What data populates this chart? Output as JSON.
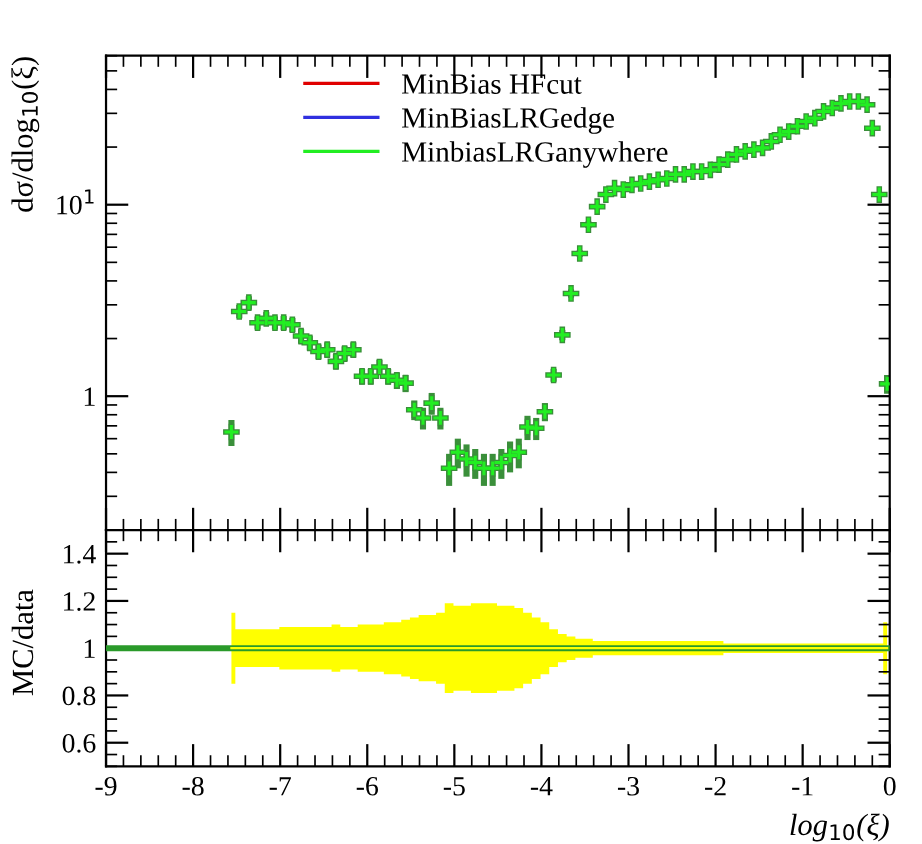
{
  "chart_data": [
    {
      "type": "scatter",
      "ylabel": "dσ/dlog$_{10}$(ξ)",
      "log": "y",
      "xlim": [
        -9,
        0
      ],
      "xticks": [
        -9,
        -8,
        -7,
        -6,
        -5,
        -4,
        -3,
        -2,
        -1,
        0
      ],
      "ylim": [
        0.2,
        60
      ],
      "yticks": [
        {
          "value": 1,
          "label": "1"
        },
        {
          "value": 10,
          "label": "10$^{1}$"
        }
      ],
      "tick_labels": "y",
      "legend": "top right",
      "marker": "cross",
      "grid": false,
      "x": [
        -7.56,
        -7.47,
        -7.36,
        -7.26,
        -7.16,
        -7.06,
        -6.96,
        -6.86,
        -6.76,
        -6.66,
        -6.56,
        -6.46,
        -6.36,
        -6.26,
        -6.16,
        -6.06,
        -5.96,
        -5.86,
        -5.76,
        -5.66,
        -5.56,
        -5.46,
        -5.36,
        -5.26,
        -5.16,
        -5.06,
        -4.96,
        -4.86,
        -4.76,
        -4.66,
        -4.56,
        -4.46,
        -4.36,
        -4.26,
        -4.16,
        -4.06,
        -3.96,
        -3.86,
        -3.76,
        -3.66,
        -3.56,
        -3.46,
        -3.36,
        -3.26,
        -3.16,
        -3.06,
        -2.96,
        -2.86,
        -2.76,
        -2.66,
        -2.56,
        -2.46,
        -2.36,
        -2.26,
        -2.16,
        -2.06,
        -1.96,
        -1.86,
        -1.76,
        -1.66,
        -1.56,
        -1.46,
        -1.36,
        -1.26,
        -1.16,
        -1.06,
        -0.96,
        -0.86,
        -0.76,
        -0.66,
        -0.56,
        -0.46,
        -0.36,
        -0.26,
        -0.2,
        -0.12,
        -0.03
      ],
      "series": [
        {
          "color": "#3a8f3a",
          "values": [
            0.65,
            2.77,
            3.08,
            2.42,
            2.55,
            2.42,
            2.42,
            2.36,
            2.06,
            1.9,
            1.71,
            1.75,
            1.52,
            1.67,
            1.75,
            1.27,
            1.27,
            1.42,
            1.27,
            1.21,
            1.17,
            0.85,
            0.77,
            0.92,
            0.77,
            0.42,
            0.51,
            0.47,
            0.45,
            0.42,
            0.42,
            0.45,
            0.49,
            0.51,
            0.69,
            0.68,
            0.83,
            1.29,
            2.09,
            3.44,
            5.56,
            7.86,
            9.77,
            11.3,
            12.2,
            12.0,
            12.7,
            12.9,
            13.2,
            13.5,
            13.7,
            14.4,
            14.4,
            14.9,
            14.9,
            15.2,
            16.2,
            17.2,
            18.3,
            19.0,
            19.4,
            19.8,
            21.4,
            23.2,
            24.1,
            25.7,
            27.2,
            28.3,
            30.7,
            32.0,
            33.8,
            34.6,
            34.6,
            33.3,
            25.1,
            11.3,
            1.16
          ],
          "errors": [
            0.1,
            0.22,
            0.25,
            0.19,
            0.2,
            0.19,
            0.2,
            0.2,
            0.18,
            0.17,
            0.15,
            0.16,
            0.14,
            0.15,
            0.16,
            0.12,
            0.12,
            0.13,
            0.12,
            0.12,
            0.12,
            0.1,
            0.1,
            0.12,
            0.1,
            0.08,
            0.09,
            0.09,
            0.08,
            0.08,
            0.08,
            0.08,
            0.09,
            0.09,
            0.1,
            0.09,
            0.09,
            0.1,
            0.13,
            0.17,
            0.22,
            0.3,
            0.3,
            0.34,
            0.37,
            0.36,
            0.38,
            0.39,
            0.4,
            0.4,
            0.41,
            0.43,
            0.43,
            0.45,
            0.45,
            0.46,
            0.4,
            0.43,
            0.46,
            0.48,
            0.49,
            0.5,
            0.54,
            0.58,
            0.6,
            0.64,
            0.68,
            0.71,
            0.77,
            0.8,
            0.85,
            0.87,
            0.87,
            0.83,
            0.63,
            0.28,
            0.13
          ]
        },
        {
          "name": "MinBias HFcut",
          "color": "#e00000",
          "values": [
            null,
            null,
            null,
            null,
            null,
            null,
            null,
            null,
            null,
            null,
            null,
            null,
            null,
            null,
            null,
            null,
            null,
            null,
            null,
            null,
            null,
            null,
            null,
            null,
            null,
            null,
            null,
            null,
            null,
            null,
            null,
            null,
            null,
            null,
            null,
            null,
            null,
            null,
            null,
            null,
            null,
            null,
            null,
            null,
            null,
            null,
            null,
            null,
            null,
            null,
            null,
            null,
            null,
            null,
            null,
            null,
            null,
            null,
            null,
            null,
            null,
            null,
            null,
            null,
            null,
            null,
            null,
            null,
            null,
            null,
            null,
            null,
            null,
            null,
            null,
            null,
            null
          ]
        },
        {
          "name": "MinBiasLRGedge",
          "color": "#3030e0",
          "values": [
            null,
            null,
            null,
            null,
            null,
            null,
            null,
            null,
            null,
            null,
            null,
            null,
            null,
            null,
            null,
            null,
            null,
            null,
            null,
            null,
            null,
            null,
            null,
            null,
            null,
            null,
            null,
            null,
            null,
            null,
            null,
            null,
            null,
            null,
            null,
            null,
            null,
            null,
            null,
            null,
            null,
            null,
            null,
            null,
            null,
            null,
            null,
            null,
            null,
            null,
            null,
            null,
            null,
            null,
            null,
            null,
            null,
            null,
            null,
            null,
            null,
            null,
            null,
            null,
            null,
            null,
            null,
            null,
            null,
            null,
            null,
            null,
            null,
            null,
            null,
            null,
            null
          ]
        },
        {
          "name": "MinbiasLRGanywhere",
          "color": "#22ee22",
          "values": [
            0.65,
            2.77,
            3.08,
            2.42,
            2.55,
            2.42,
            2.42,
            2.36,
            2.06,
            1.9,
            1.71,
            1.75,
            1.52,
            1.67,
            1.75,
            1.27,
            1.27,
            1.42,
            1.27,
            1.21,
            1.17,
            0.85,
            0.77,
            0.92,
            0.77,
            0.42,
            0.51,
            0.47,
            0.45,
            0.42,
            0.42,
            0.45,
            0.49,
            0.51,
            0.69,
            0.68,
            0.83,
            1.29,
            2.09,
            3.44,
            5.56,
            7.86,
            9.77,
            11.3,
            12.2,
            12.0,
            12.7,
            12.9,
            13.2,
            13.5,
            13.7,
            14.4,
            14.4,
            14.9,
            14.9,
            15.2,
            16.2,
            17.2,
            18.3,
            19.0,
            19.4,
            19.8,
            21.4,
            23.2,
            24.1,
            25.7,
            27.2,
            28.3,
            30.7,
            32.0,
            33.8,
            34.6,
            34.6,
            33.3,
            25.1,
            11.3,
            1.16
          ]
        }
      ]
    },
    {
      "type": "line",
      "ylabel": "MC/data",
      "xlabel": "log$_{10}$(ξ)",
      "xlim": [
        -9,
        0
      ],
      "xticks": [
        -9,
        -8,
        -7,
        -6,
        -5,
        -4,
        -3,
        -2,
        -1,
        0
      ],
      "ylim": [
        0.5,
        1.5
      ],
      "yticks": [
        0.6,
        0.8,
        1,
        1.2,
        1.4
      ],
      "grid": false,
      "ref_lines": [
        {
          "axis": "y",
          "value": 1,
          "color": "#2a9a2a"
        }
      ],
      "x": [
        -7.56,
        -7.47,
        -7.36,
        -7.26,
        -7.16,
        -7.06,
        -6.96,
        -6.86,
        -6.76,
        -6.66,
        -6.56,
        -6.46,
        -6.36,
        -6.26,
        -6.16,
        -6.06,
        -5.96,
        -5.86,
        -5.76,
        -5.66,
        -5.56,
        -5.46,
        -5.36,
        -5.26,
        -5.16,
        -5.06,
        -4.96,
        -4.86,
        -4.76,
        -4.66,
        -4.56,
        -4.46,
        -4.36,
        -4.26,
        -4.16,
        -4.06,
        -3.96,
        -3.86,
        -3.76,
        -3.66,
        -3.56,
        -3.46,
        -3.36,
        -3.26,
        -3.16,
        -3.06,
        -2.96,
        -2.86,
        -2.76,
        -2.66,
        -2.56,
        -2.46,
        -2.36,
        -2.26,
        -2.16,
        -2.06,
        -1.96,
        -1.86,
        -1.76,
        -1.66,
        -1.56,
        -1.46,
        -1.36,
        -1.26,
        -1.16,
        -1.06,
        -0.96,
        -0.86,
        -0.76,
        -0.66,
        -0.56,
        -0.46,
        -0.36,
        -0.26,
        -0.2,
        -0.12,
        -0.03
      ],
      "series": [
        {
          "color": "#ffff00",
          "values": [
            1,
            1,
            1,
            1,
            1,
            1,
            1,
            1,
            1,
            1,
            1,
            1,
            1,
            1,
            1,
            1,
            1,
            1,
            1,
            1,
            1,
            1,
            1,
            1,
            1,
            1,
            1,
            1,
            1,
            1,
            1,
            1,
            1,
            1,
            1,
            1,
            1,
            1,
            1,
            1,
            1,
            1,
            1,
            1,
            1,
            1,
            1,
            1,
            1,
            1,
            1,
            1,
            1,
            1,
            1,
            1,
            1,
            1,
            1,
            1,
            1,
            1,
            1,
            1,
            1,
            1,
            1,
            1,
            1,
            1,
            1,
            1,
            1,
            1,
            1,
            1,
            1
          ],
          "lower": [
            0.85,
            0.92,
            0.92,
            0.92,
            0.92,
            0.92,
            0.91,
            0.91,
            0.91,
            0.91,
            0.91,
            0.91,
            0.9,
            0.91,
            0.91,
            0.9,
            0.9,
            0.9,
            0.89,
            0.89,
            0.88,
            0.87,
            0.86,
            0.86,
            0.85,
            0.81,
            0.82,
            0.82,
            0.81,
            0.81,
            0.81,
            0.82,
            0.82,
            0.83,
            0.85,
            0.87,
            0.89,
            0.92,
            0.94,
            0.95,
            0.96,
            0.96,
            0.97,
            0.97,
            0.97,
            0.97,
            0.97,
            0.97,
            0.97,
            0.97,
            0.97,
            0.97,
            0.97,
            0.97,
            0.97,
            0.97,
            0.97,
            0.98,
            0.98,
            0.98,
            0.98,
            0.98,
            0.98,
            0.98,
            0.98,
            0.98,
            0.98,
            0.98,
            0.98,
            0.98,
            0.98,
            0.98,
            0.98,
            0.98,
            0.98,
            0.98,
            0.89
          ],
          "upper": [
            1.15,
            1.08,
            1.08,
            1.08,
            1.08,
            1.08,
            1.09,
            1.09,
            1.09,
            1.09,
            1.09,
            1.09,
            1.1,
            1.09,
            1.09,
            1.1,
            1.1,
            1.1,
            1.11,
            1.11,
            1.12,
            1.13,
            1.14,
            1.14,
            1.15,
            1.19,
            1.18,
            1.18,
            1.19,
            1.19,
            1.19,
            1.18,
            1.18,
            1.17,
            1.15,
            1.13,
            1.11,
            1.08,
            1.06,
            1.05,
            1.04,
            1.04,
            1.03,
            1.03,
            1.03,
            1.03,
            1.03,
            1.03,
            1.03,
            1.03,
            1.03,
            1.03,
            1.03,
            1.03,
            1.03,
            1.03,
            1.03,
            1.02,
            1.02,
            1.02,
            1.02,
            1.02,
            1.02,
            1.02,
            1.02,
            1.02,
            1.02,
            1.02,
            1.02,
            1.02,
            1.02,
            1.02,
            1.02,
            1.02,
            1.02,
            1.02,
            1.11
          ]
        }
      ]
    }
  ]
}
